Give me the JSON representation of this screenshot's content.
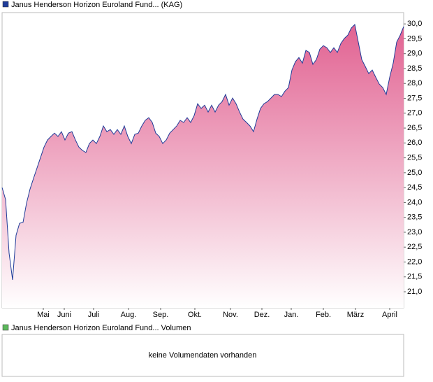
{
  "chart_data": [
    {
      "type": "area",
      "series": [
        {
          "name": "Janus Henderson Horizon Euroland Fund... (KAG)",
          "color": "#1f3c99",
          "values": [
            24.5,
            24.1,
            22.3,
            21.4,
            22.9,
            23.3,
            23.33,
            23.98,
            24.45,
            24.81,
            25.16,
            25.51,
            25.86,
            26.1,
            26.22,
            26.33,
            26.22,
            26.38,
            26.1,
            26.33,
            26.38,
            26.1,
            25.86,
            25.75,
            25.68,
            25.98,
            26.1,
            25.98,
            26.22,
            26.57,
            26.38,
            26.45,
            26.29,
            26.45,
            26.29,
            26.57,
            26.22,
            25.98,
            26.29,
            26.33,
            26.57,
            26.76,
            26.85,
            26.69,
            26.33,
            26.22,
            25.98,
            26.1,
            26.33,
            26.45,
            26.57,
            26.76,
            26.69,
            26.85,
            26.69,
            26.92,
            27.32,
            27.16,
            27.27,
            27.04,
            27.27,
            27.04,
            27.27,
            27.39,
            27.63,
            27.27,
            27.51,
            27.32,
            27.04,
            26.8,
            26.69,
            26.57,
            26.38,
            26.8,
            27.16,
            27.32,
            27.39,
            27.51,
            27.63,
            27.63,
            27.56,
            27.74,
            27.86,
            28.45,
            28.73,
            28.87,
            28.68,
            29.11,
            29.04,
            28.64,
            28.8,
            29.15,
            29.27,
            29.2,
            29.04,
            29.2,
            29.04,
            29.34,
            29.51,
            29.62,
            29.86,
            29.98,
            29.39,
            28.8,
            28.57,
            28.33,
            28.45,
            28.21,
            27.98,
            27.86,
            27.63,
            28.21,
            28.68,
            29.39,
            29.62,
            29.91
          ]
        }
      ],
      "x": [
        0,
        1,
        2,
        3,
        4,
        5,
        6,
        7,
        8,
        9,
        10,
        11,
        12,
        13,
        14,
        15,
        16,
        17,
        18,
        19,
        20,
        21,
        22,
        23,
        24,
        25,
        26,
        27,
        28,
        29,
        30,
        31,
        32,
        33,
        34,
        35,
        36,
        37,
        38,
        39,
        40,
        41,
        42,
        43,
        44,
        45,
        46,
        47,
        48,
        49,
        50,
        51,
        52,
        53,
        54,
        55,
        56,
        57,
        58,
        59,
        60,
        61,
        62,
        63,
        64,
        65,
        66,
        67,
        68,
        69,
        70,
        71,
        72,
        73,
        74,
        75,
        76,
        77,
        78,
        79,
        80,
        81,
        82,
        83,
        84,
        85,
        86,
        87,
        88,
        89,
        90,
        91,
        92,
        93,
        94,
        95,
        96,
        97,
        98,
        99,
        100,
        101,
        102,
        103,
        104,
        105,
        106,
        107,
        108,
        109,
        110,
        111,
        112,
        113,
        114,
        115
      ],
      "fill_color": "#e05a8c",
      "xlim": [
        0,
        115
      ],
      "xticks": [
        {
          "value": 11.8,
          "label": "Mai"
        },
        {
          "value": 17.8,
          "label": "Juni"
        },
        {
          "value": 26.2,
          "label": "Juli"
        },
        {
          "value": 36.2,
          "label": "Aug."
        },
        {
          "value": 45.4,
          "label": "Sep."
        },
        {
          "value": 55.2,
          "label": "Okt."
        },
        {
          "value": 65.4,
          "label": "Nov."
        },
        {
          "value": 74.4,
          "label": "Dez."
        },
        {
          "value": 82.8,
          "label": "Jan."
        },
        {
          "value": 92,
          "label": "Feb."
        },
        {
          "value": 101.2,
          "label": "März"
        },
        {
          "value": 111,
          "label": "April"
        }
      ],
      "ylim": [
        20.46,
        30.38
      ],
      "yticks": [
        {
          "value": 21,
          "label": "21,0"
        },
        {
          "value": 21.5,
          "label": "21,5"
        },
        {
          "value": 22,
          "label": "22,0"
        },
        {
          "value": 22.5,
          "label": "22,5"
        },
        {
          "value": 23,
          "label": "23,0"
        },
        {
          "value": 23.5,
          "label": "23,5"
        },
        {
          "value": 24,
          "label": "24,0"
        },
        {
          "value": 24.5,
          "label": "24,5"
        },
        {
          "value": 25,
          "label": "25,0"
        },
        {
          "value": 25.5,
          "label": "25,5"
        },
        {
          "value": 26,
          "label": "26,0"
        },
        {
          "value": 26.5,
          "label": "26,5"
        },
        {
          "value": 27,
          "label": "27,0"
        },
        {
          "value": 27.5,
          "label": "27,5"
        },
        {
          "value": 28,
          "label": "28,0"
        },
        {
          "value": 28.5,
          "label": "28,5"
        },
        {
          "value": 29,
          "label": "29,0"
        },
        {
          "value": 29.5,
          "label": "29,5"
        },
        {
          "value": 30,
          "label": "30,0"
        }
      ]
    },
    {
      "type": "empty",
      "series": [
        {
          "name": "Janus Henderson Horizon Euroland Fund... Volumen",
          "color": "#5cb85c",
          "values": []
        }
      ],
      "message": "keine Volumendaten vorhanden"
    }
  ]
}
